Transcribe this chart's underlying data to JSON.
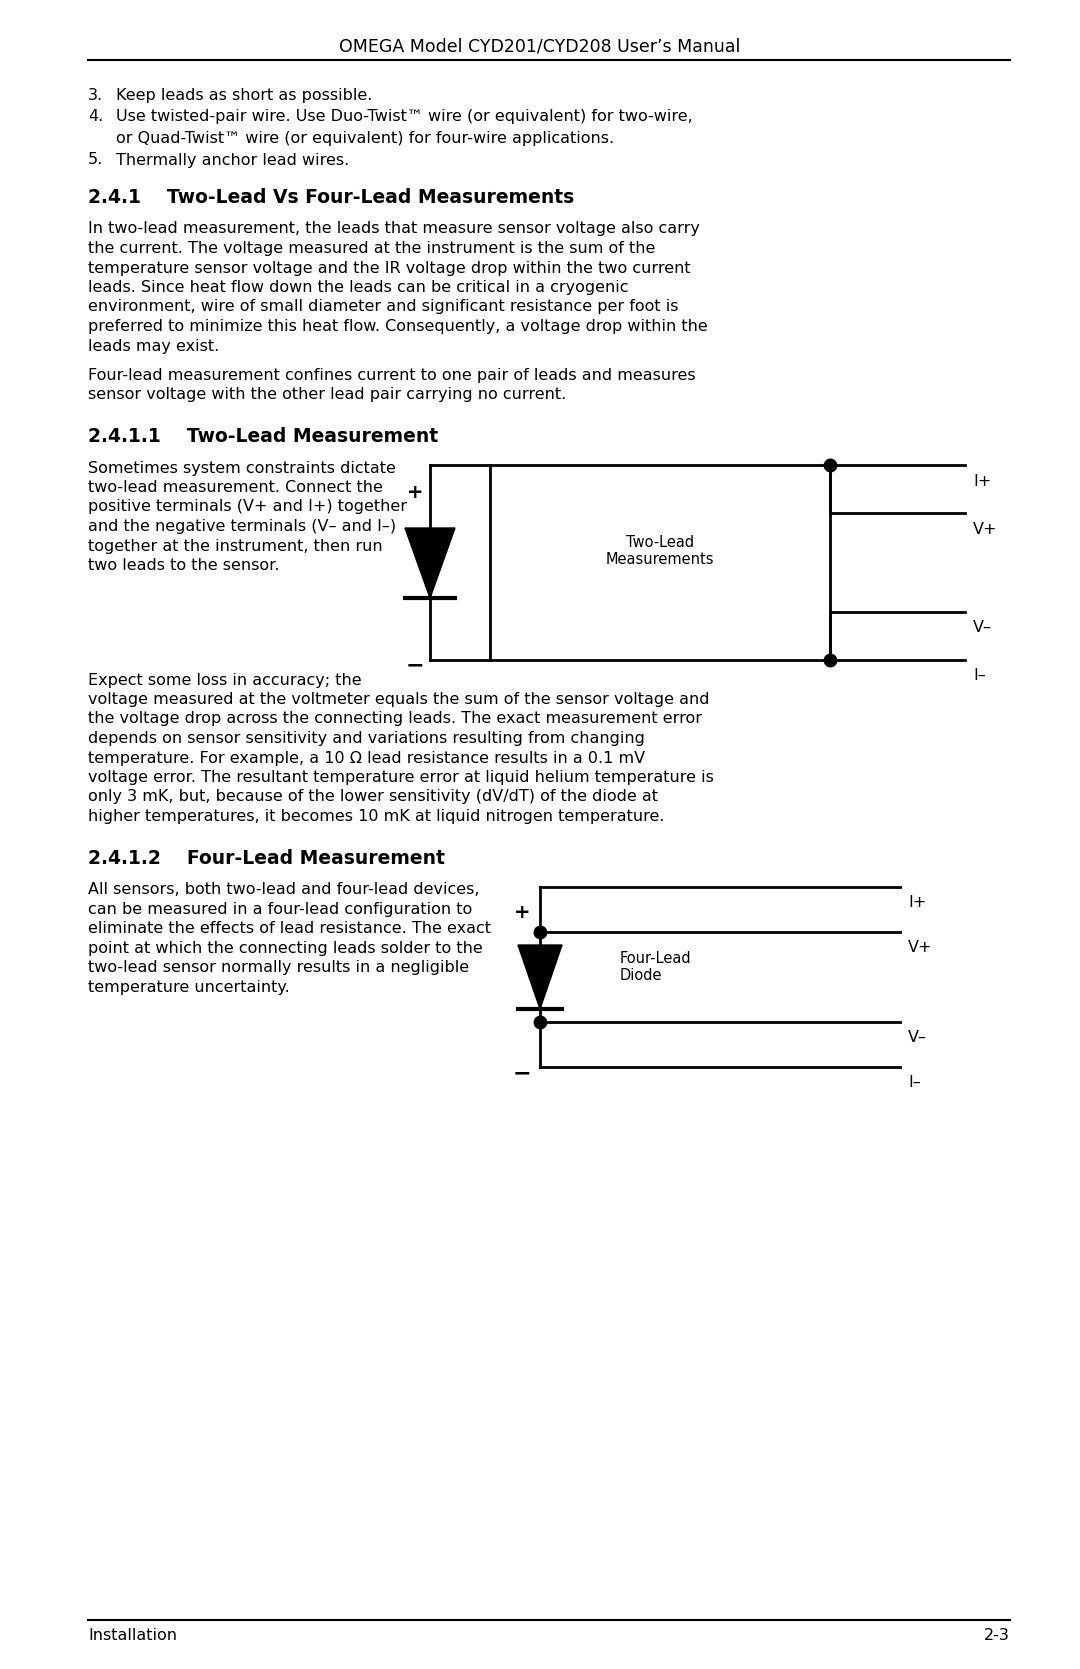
{
  "page_title": "OMEGA Model CYD201/CYD208 User’s Manual",
  "footer_left": "Installation",
  "footer_right": "2-3",
  "bg_color": "#ffffff",
  "text_color": "#000000",
  "section_241_title": "2.4.1    Two-Lead Vs Four-Lead Measurements",
  "section_2411_title": "2.4.1.1    Two-Lead Measurement",
  "section_2412_title": "2.4.1.2    Four-Lead Measurement",
  "para1_lines": [
    "In two-lead measurement, the leads that measure sensor voltage also carry",
    "the current. The voltage measured at the instrument is the sum of the",
    "temperature sensor voltage and the IR voltage drop within the two current",
    "leads. Since heat flow down the leads can be critical in a cryogenic",
    "environment, wire of small diameter and significant resistance per foot is",
    "preferred to minimize this heat flow. Consequently, a voltage drop within the",
    "leads may exist."
  ],
  "para2_lines": [
    "Four-lead measurement confines current to one pair of leads and measures",
    "sensor voltage with the other lead pair carrying no current."
  ],
  "left_lines_2411": [
    "Sometimes system constraints dictate",
    "two-lead measurement. Connect the",
    "positive terminals (V+ and I+) together",
    "and the negative terminals (V– and I–)",
    "together at the instrument, then run",
    "two leads to the sensor."
  ],
  "after_lines_2411": [
    "Expect some loss in accuracy; the",
    "voltage measured at the voltmeter equals the sum of the sensor voltage and",
    "the voltage drop across the connecting leads. The exact measurement error",
    "depends on sensor sensitivity and variations resulting from changing",
    "temperature. For example, a 10 Ω lead resistance results in a 0.1 mV",
    "voltage error. The resultant temperature error at liquid helium temperature is",
    "only 3 mK, but, because of the lower sensitivity (dV/dT) of the diode at",
    "higher temperatures, it becomes 10 mK at liquid nitrogen temperature."
  ],
  "left_lines_2412": [
    "All sensors, both two-lead and four-lead devices,",
    "can be measured in a four-lead configuration to",
    "eliminate the effects of lead resistance. The exact",
    "point at which the connecting leads solder to the",
    "two-lead sensor normally results in a negligible",
    "temperature uncertainty."
  ],
  "bullet3": "Keep leads as short as possible.",
  "bullet4a": "Use twisted-pair wire. Use Duo-Twist™ wire (or equivalent) for two-wire,",
  "bullet4b": "or Quad-Twist™ wire (or equivalent) for four-wire applications.",
  "bullet5": "Thermally anchor lead wires."
}
